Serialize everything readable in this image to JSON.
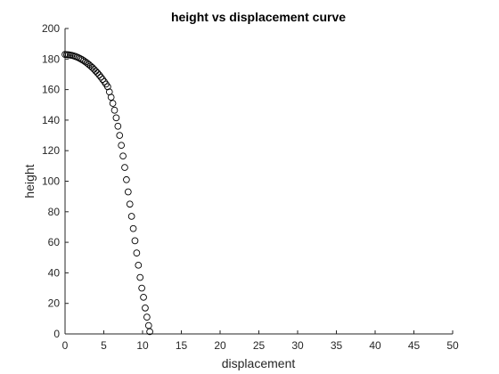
{
  "chart_data": {
    "type": "scatter",
    "title": "height vs displacement curve",
    "xlabel": "displacement",
    "ylabel": "height",
    "xlim": [
      0,
      50
    ],
    "ylim": [
      0,
      200
    ],
    "xticks": [
      0,
      5,
      10,
      15,
      20,
      25,
      30,
      35,
      40,
      45,
      50
    ],
    "yticks": [
      0,
      20,
      40,
      60,
      80,
      100,
      120,
      140,
      160,
      180,
      200
    ],
    "grid": false,
    "legend": "none",
    "marker": "open-circle",
    "marker_color": "#000000",
    "series": [
      {
        "x": [
          0.0,
          0.22,
          0.44,
          0.66,
          0.88,
          1.1,
          1.32,
          1.54,
          1.76,
          1.98,
          2.2,
          2.42,
          2.64,
          2.86,
          3.08,
          3.3,
          3.52,
          3.74,
          3.96,
          4.18,
          4.4,
          4.62,
          4.84,
          5.06,
          5.28,
          5.5,
          5.72,
          5.94,
          6.16,
          6.38,
          6.6,
          6.82,
          7.04,
          7.26,
          7.48,
          7.7,
          7.92,
          8.14,
          8.36,
          8.58,
          8.8,
          9.02,
          9.24,
          9.46,
          9.68,
          9.9,
          10.12,
          10.34,
          10.56,
          10.78,
          10.93
        ],
        "y": [
          183.0,
          182.9,
          182.8,
          182.6,
          182.4,
          182.1,
          181.7,
          181.3,
          180.8,
          180.2,
          179.6,
          178.9,
          178.1,
          177.3,
          176.4,
          175.4,
          174.4,
          173.3,
          172.1,
          170.9,
          169.6,
          168.2,
          166.7,
          165.2,
          163.6,
          161.9,
          158.5,
          155.0,
          151.0,
          146.5,
          141.5,
          136.0,
          130.0,
          123.5,
          116.5,
          109.0,
          101.0,
          93.0,
          85.0,
          77.0,
          69.0,
          61.0,
          53.0,
          45.0,
          37.0,
          30.0,
          24.0,
          17.0,
          11.0,
          5.5,
          1.5
        ]
      }
    ]
  }
}
